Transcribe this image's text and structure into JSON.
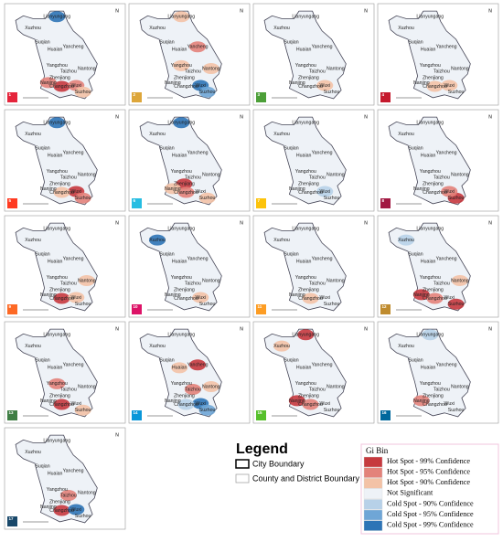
{
  "cities": [
    "Lianyungang",
    "Xuzhou",
    "Suqian",
    "Huaian",
    "Yancheng",
    "Yangzhou",
    "Taizhou",
    "Nantong",
    "Zhenjiang",
    "Nanjing",
    "Changzhou",
    "Wuxi",
    "Suzhou"
  ],
  "north": "N",
  "panels": [
    {
      "sdg": "1",
      "icon_color": "#e5243b",
      "spots": [
        {
          "city": "Lianyungang",
          "bin": 6
        },
        {
          "city": "Changzhou",
          "bin": 0
        },
        {
          "city": "Wuxi",
          "bin": 1
        },
        {
          "city": "Suzhou",
          "bin": 2
        },
        {
          "city": "Nanjing",
          "bin": 1
        }
      ]
    },
    {
      "sdg": "2",
      "icon_color": "#dda63a",
      "spots": [
        {
          "city": "Yancheng",
          "bin": 1
        },
        {
          "city": "Lianyungang",
          "bin": 2
        },
        {
          "city": "Nantong",
          "bin": 2
        },
        {
          "city": "Wuxi",
          "bin": 6
        },
        {
          "city": "Suzhou",
          "bin": 5
        },
        {
          "city": "Yangzhou",
          "bin": 2
        }
      ]
    },
    {
      "sdg": "3",
      "icon_color": "#4c9f38",
      "spots": [
        {
          "city": "Wuxi",
          "bin": 2
        }
      ]
    },
    {
      "sdg": "4",
      "icon_color": "#c5192d",
      "spots": [
        {
          "city": "Wuxi",
          "bin": 2
        },
        {
          "city": "Changzhou",
          "bin": 2
        }
      ]
    },
    {
      "sdg": "5",
      "icon_color": "#ff3a21",
      "spots": [
        {
          "city": "Lianyungang",
          "bin": 6
        },
        {
          "city": "Wuxi",
          "bin": 0
        },
        {
          "city": "Suzhou",
          "bin": 1
        },
        {
          "city": "Changzhou",
          "bin": 2
        }
      ]
    },
    {
      "sdg": "6",
      "icon_color": "#26bde2",
      "spots": [
        {
          "city": "Lianyungang",
          "bin": 6
        },
        {
          "city": "Zhenjiang",
          "bin": 0
        },
        {
          "city": "Changzhou",
          "bin": 1
        },
        {
          "city": "Suzhou",
          "bin": 2
        },
        {
          "city": "Nanjing",
          "bin": 2
        }
      ]
    },
    {
      "sdg": "7",
      "icon_color": "#fcc30b",
      "spots": [
        {
          "city": "Wuxi",
          "bin": 4
        }
      ]
    },
    {
      "sdg": "8",
      "icon_color": "#a21942",
      "spots": [
        {
          "city": "Suzhou",
          "bin": 0
        },
        {
          "city": "Wuxi",
          "bin": 1
        }
      ]
    },
    {
      "sdg": "9",
      "icon_color": "#fd6925",
      "spots": [
        {
          "city": "Nantong",
          "bin": 2
        },
        {
          "city": "Changzhou",
          "bin": 0
        },
        {
          "city": "Wuxi",
          "bin": 2
        }
      ]
    },
    {
      "sdg": "10",
      "icon_color": "#dd1367",
      "spots": [
        {
          "city": "Xuzhou",
          "bin": 6
        },
        {
          "city": "Wuxi",
          "bin": 2
        }
      ]
    },
    {
      "sdg": "11",
      "icon_color": "#fd9d24",
      "spots": [
        {
          "city": "Changzhou",
          "bin": 2
        }
      ]
    },
    {
      "sdg": "12",
      "icon_color": "#bf8b2e",
      "spots": [
        {
          "city": "Xuzhou",
          "bin": 4
        },
        {
          "city": "Nanjing",
          "bin": 0
        },
        {
          "city": "Changzhou",
          "bin": 1
        },
        {
          "city": "Suzhou",
          "bin": 0
        },
        {
          "city": "Nantong",
          "bin": 2
        }
      ]
    },
    {
      "sdg": "13",
      "icon_color": "#3f7e44",
      "spots": [
        {
          "city": "Yangzhou",
          "bin": 1
        },
        {
          "city": "Suzhou",
          "bin": 2
        },
        {
          "city": "Changzhou",
          "bin": 0
        }
      ]
    },
    {
      "sdg": "14",
      "icon_color": "#0a97d9",
      "spots": [
        {
          "city": "Yancheng",
          "bin": 0
        },
        {
          "city": "Taizhou",
          "bin": 1
        },
        {
          "city": "Huaian",
          "bin": 2
        },
        {
          "city": "Wuxi",
          "bin": 6
        },
        {
          "city": "Suzhou",
          "bin": 5
        },
        {
          "city": "Changzhou",
          "bin": 4
        },
        {
          "city": "Nantong",
          "bin": 2
        }
      ]
    },
    {
      "sdg": "15",
      "icon_color": "#56c02b",
      "spots": [
        {
          "city": "Xuzhou",
          "bin": 2
        },
        {
          "city": "Nanjing",
          "bin": 0
        },
        {
          "city": "Changzhou",
          "bin": 1
        },
        {
          "city": "Lianyungang",
          "bin": 0
        }
      ]
    },
    {
      "sdg": "16",
      "icon_color": "#00689d",
      "spots": [
        {
          "city": "Lianyungang",
          "bin": 4
        },
        {
          "city": "Nanjing",
          "bin": 1
        }
      ]
    },
    {
      "sdg": "17",
      "icon_color": "#19486a",
      "spots": [
        {
          "city": "Taizhou",
          "bin": 1
        },
        {
          "city": "Changzhou",
          "bin": 0
        },
        {
          "city": "Wuxi",
          "bin": 6
        }
      ]
    }
  ],
  "legend": {
    "title": "Legend",
    "city_boundary": "City Boundary",
    "county_boundary": "County and District Boundary"
  },
  "gi_bin": {
    "title": "Gi Bin",
    "bins": [
      {
        "label": "Hot Spot  -  99% Confidence",
        "color": "#c6393e"
      },
      {
        "label": "Hot Spot  -  95% Confidence",
        "color": "#e3827a"
      },
      {
        "label": "Hot Spot  -  90% Confidence",
        "color": "#f3c2a6"
      },
      {
        "label": "Not Significant",
        "color": "#eef2f7"
      },
      {
        "label": "Cold Spot  -  90% Confidence",
        "color": "#b7d1e8"
      },
      {
        "label": "Cold Spot  -  95% Confidence",
        "color": "#6fa6d6"
      },
      {
        "label": "Cold Spot  -  99% Confidence",
        "color": "#2e74b6"
      }
    ]
  }
}
